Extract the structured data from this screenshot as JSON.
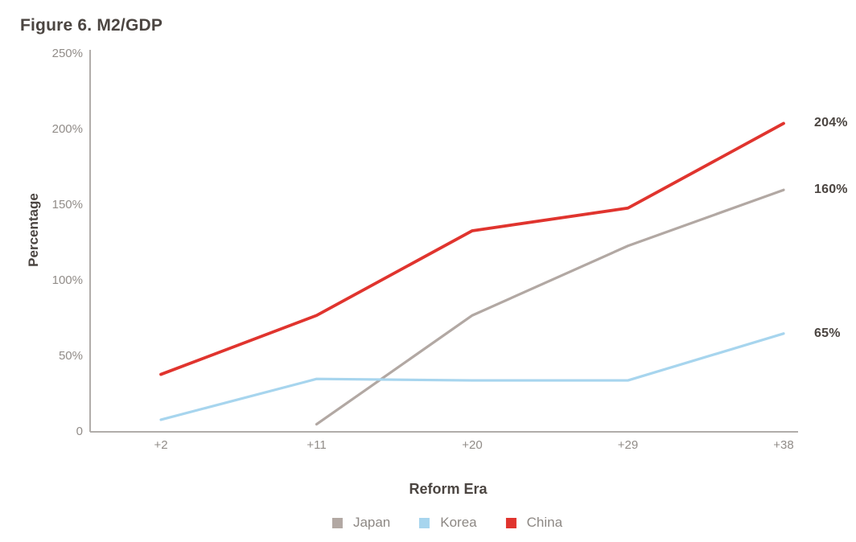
{
  "figure": {
    "title": "Figure 6. M2/GDP",
    "y_axis": {
      "title": "Percentage",
      "ticks": [
        {
          "label": "250%",
          "value": 250
        },
        {
          "label": "200%",
          "value": 200
        },
        {
          "label": "150%",
          "value": 150
        },
        {
          "label": "100%",
          "value": 100
        },
        {
          "label": "50%",
          "value": 50
        },
        {
          "label": "0",
          "value": 0
        }
      ]
    },
    "x_axis": {
      "title": "Reform Era",
      "ticks": [
        "+2",
        "+11",
        "+20",
        "+29",
        "+38"
      ]
    }
  },
  "chart_data": {
    "type": "line",
    "title": "Figure 6. M2/GDP",
    "xlabel": "Reform Era",
    "ylabel": "Percentage",
    "categories": [
      "+2",
      "+11",
      "+20",
      "+29",
      "+38"
    ],
    "y_range": [
      0,
      250
    ],
    "y_tick_step": 50,
    "grid": false,
    "legend_position": "bottom",
    "series": [
      {
        "name": "Japan",
        "color": "#b2a8a3",
        "values": [
          null,
          5,
          77,
          123,
          160
        ],
        "end_label": "160%"
      },
      {
        "name": "Korea",
        "color": "#a7d5ee",
        "values": [
          8,
          35,
          34,
          34,
          65
        ],
        "end_label": "65%"
      },
      {
        "name": "China",
        "color": "#e0342e",
        "values": [
          38,
          77,
          133,
          148,
          204
        ],
        "end_label": "204%"
      }
    ],
    "axis_color": "#b1adaa"
  }
}
